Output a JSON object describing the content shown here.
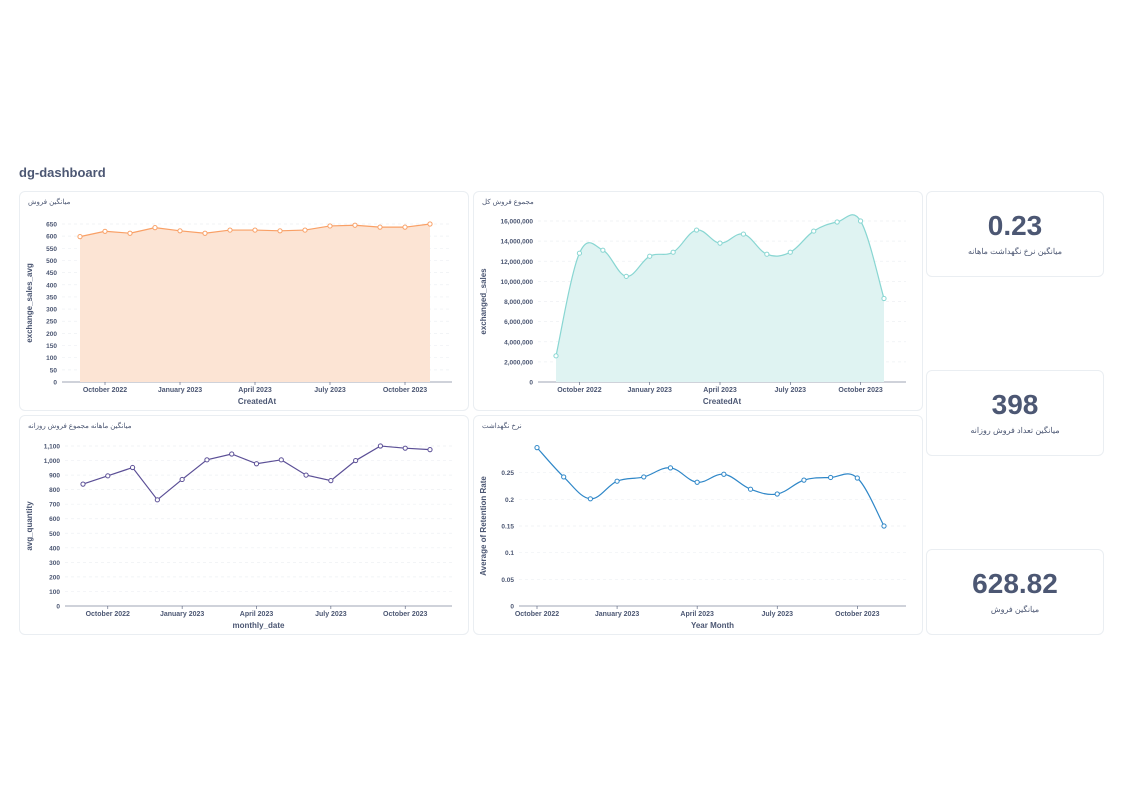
{
  "dashboard": {
    "title": "dg-dashboard"
  },
  "scalars": [
    {
      "value": "0.23",
      "label": "میانگین نرخ نگهداشت ماهانه"
    },
    {
      "value": "398",
      "label": "میانگین تعداد فروش روزانه"
    },
    {
      "value": "628.82",
      "label": "میانگین فروش"
    }
  ],
  "chart_data": [
    {
      "id": "avg-sales",
      "type": "area",
      "title": "میانگین فروش",
      "xlabel": "CreatedAt",
      "ylabel": "exchange_sales_avg",
      "color": "#f9a066",
      "fill": "#fce4d4",
      "ylim": [
        0,
        650
      ],
      "yticks": [
        "0",
        "50",
        "100",
        "150",
        "200",
        "250",
        "300",
        "350",
        "400",
        "450",
        "500",
        "550",
        "600",
        "650"
      ],
      "xticks": [
        "October 2022",
        "January 2023",
        "April 2023",
        "July 2023",
        "October 2023"
      ],
      "x": [
        "2022-09",
        "2022-10",
        "2022-11",
        "2022-12",
        "2023-01",
        "2023-02",
        "2023-03",
        "2023-04",
        "2023-05",
        "2023-06",
        "2023-07",
        "2023-08",
        "2023-09",
        "2023-10",
        "2023-11"
      ],
      "values": [
        598,
        620,
        612,
        635,
        622,
        612,
        625,
        625,
        622,
        625,
        642,
        645,
        637,
        637,
        650
      ]
    },
    {
      "id": "total-sales",
      "type": "area",
      "title": "مجموع فروش کل",
      "xlabel": "CreatedAt",
      "ylabel": "exchanged_sales",
      "color": "#88d6d2",
      "fill": "#dff3f2",
      "ylim": [
        0,
        16000000
      ],
      "yticks": [
        "0",
        "2,000,000",
        "4,000,000",
        "6,000,000",
        "8,000,000",
        "10,000,000",
        "12,000,000",
        "14,000,000",
        "16,000,000"
      ],
      "xticks": [
        "October 2022",
        "January 2023",
        "April 2023",
        "July 2023",
        "October 2023"
      ],
      "x": [
        "2022-09",
        "2022-10",
        "2022-11",
        "2022-12",
        "2023-01",
        "2023-02",
        "2023-03",
        "2023-04",
        "2023-05",
        "2023-06",
        "2023-07",
        "2023-08",
        "2023-09",
        "2023-10",
        "2023-11"
      ],
      "values": [
        2600000,
        12800000,
        13100000,
        10500000,
        12500000,
        12900000,
        15100000,
        13800000,
        14700000,
        12700000,
        12900000,
        15000000,
        15900000,
        16000000,
        8300000
      ]
    },
    {
      "id": "avg-quantity",
      "type": "line",
      "title": "میانگین ماهانه مجموع فروش روزانه",
      "xlabel": "monthly_date",
      "ylabel": "avg_quantity",
      "color": "#5b4f96",
      "ylim": [
        0,
        1100
      ],
      "yticks": [
        "0",
        "100",
        "200",
        "300",
        "400",
        "500",
        "600",
        "700",
        "800",
        "900",
        "1,000",
        "1,100"
      ],
      "xticks": [
        "October 2022",
        "January 2023",
        "April 2023",
        "July 2023",
        "October 2023"
      ],
      "x": [
        "2022-09",
        "2022-10",
        "2022-11",
        "2022-12",
        "2023-01",
        "2023-02",
        "2023-03",
        "2023-04",
        "2023-05",
        "2023-06",
        "2023-07",
        "2023-08",
        "2023-09",
        "2023-10",
        "2023-11"
      ],
      "values": [
        838,
        895,
        952,
        730,
        870,
        1005,
        1045,
        978,
        1005,
        900,
        862,
        1000,
        1100,
        1085,
        1075
      ]
    },
    {
      "id": "retention-rate",
      "type": "line",
      "title": "نرخ نگهداشت",
      "xlabel": "Year Month",
      "ylabel": "Average of Retention Rate",
      "color": "#2f87c8",
      "ylim": [
        0,
        0.3
      ],
      "yticks": [
        "0",
        "0.05",
        "0.1",
        "0.15",
        "0.2",
        "0.25"
      ],
      "xticks": [
        "October 2022",
        "January 2023",
        "April 2023",
        "July 2023",
        "October 2023"
      ],
      "x": [
        "2022-10",
        "2022-11",
        "2022-12",
        "2023-01",
        "2023-02",
        "2023-03",
        "2023-04",
        "2023-05",
        "2023-06",
        "2023-07",
        "2023-08",
        "2023-09",
        "2023-10",
        "2023-11"
      ],
      "values": [
        0.297,
        0.242,
        0.201,
        0.234,
        0.242,
        0.259,
        0.232,
        0.247,
        0.219,
        0.21,
        0.236,
        0.241,
        0.24,
        0.15
      ]
    }
  ]
}
